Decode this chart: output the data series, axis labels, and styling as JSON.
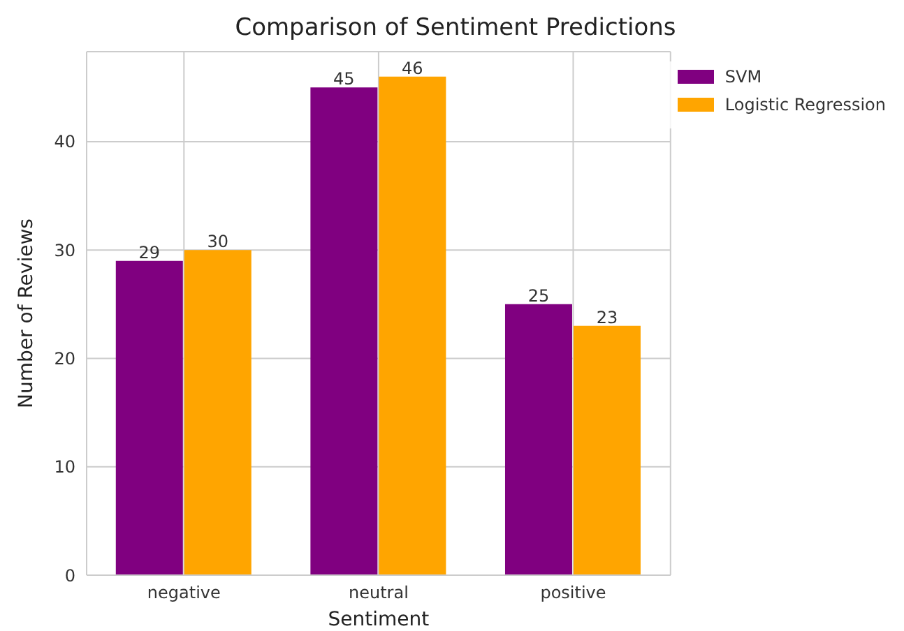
{
  "chart_data": {
    "type": "bar",
    "title": "Comparison of Sentiment Predictions",
    "xlabel": "Sentiment",
    "ylabel": "Number of Reviews",
    "categories": [
      "negative",
      "neutral",
      "positive"
    ],
    "series": [
      {
        "name": "SVM",
        "color": "#800080",
        "values": [
          29,
          45,
          25
        ]
      },
      {
        "name": "Logistic Regression",
        "color": "#ffa500",
        "values": [
          30,
          46,
          23
        ]
      }
    ],
    "ylim": [
      0,
      48.3
    ],
    "yticks": [
      0,
      10,
      20,
      30,
      40
    ],
    "grid": true,
    "legend": "top right",
    "data_labels": true
  }
}
